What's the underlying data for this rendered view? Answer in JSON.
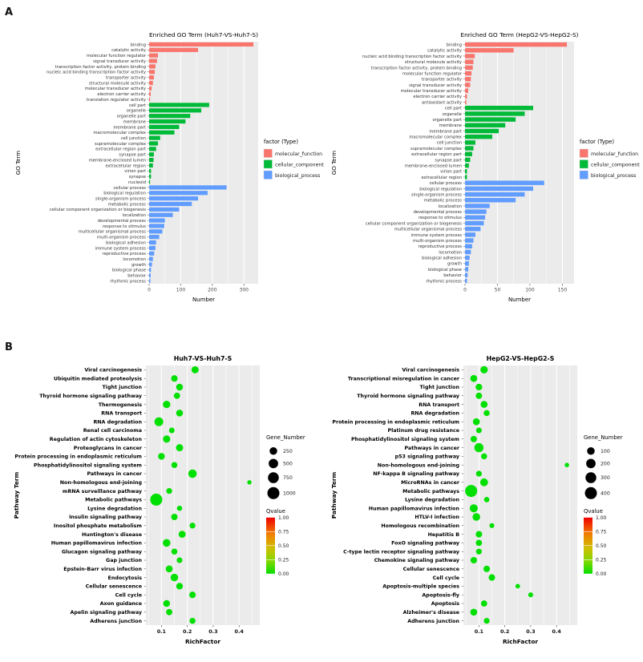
{
  "figure": {
    "panel_a_label": "A",
    "panel_b_label": "B"
  },
  "colors": {
    "molecular_function": "#F8766D",
    "cellular_component": "#00BA38",
    "biological_process": "#619CFF",
    "plot_background": "#EBEBEB",
    "qvalue_low": "#06DD00",
    "qvalue_high": "#F00000"
  },
  "chart_data": [
    {
      "id": "go-huh7",
      "type": "bar",
      "orientation": "horizontal",
      "title": "Enriched GO Term (Huh7-VS-Huh7-S)",
      "xlabel": "Number",
      "ylabel": "GO Term",
      "xticks": [
        0,
        100,
        200,
        300
      ],
      "xlim": [
        0,
        345
      ],
      "grid": true,
      "legend": {
        "title": "factor (Type)",
        "items": [
          {
            "label": "molecular_function",
            "color": "#F8766D"
          },
          {
            "label": "cellular_component",
            "color": "#00BA38"
          },
          {
            "label": "biological_process",
            "color": "#619CFF"
          }
        ]
      },
      "bars": {
        "columns": [
          "label",
          "group",
          "value"
        ],
        "rows": [
          [
            "binding",
            "molecular_function",
            330
          ],
          [
            "catalytic activity",
            "molecular_function",
            155
          ],
          [
            "molecular function regulator",
            "molecular_function",
            28
          ],
          [
            "signal transducer activity",
            "molecular_function",
            25
          ],
          [
            "transcription factor activity, protein binding",
            "molecular_function",
            20
          ],
          [
            "nucleic acid binding transcription factor activity",
            "molecular_function",
            18
          ],
          [
            "transporter activity",
            "molecular_function",
            15
          ],
          [
            "structural molecule activity",
            "molecular_function",
            12
          ],
          [
            "molecular transducer activity",
            "molecular_function",
            8
          ],
          [
            "electron carrier activity",
            "molecular_function",
            5
          ],
          [
            "translation regulator activity",
            "molecular_function",
            3
          ],
          [
            "cell part",
            "cellular_component",
            190
          ],
          [
            "organelle",
            "cellular_component",
            165
          ],
          [
            "organelle part",
            "cellular_component",
            130
          ],
          [
            "membrane",
            "cellular_component",
            115
          ],
          [
            "membrane part",
            "cellular_component",
            95
          ],
          [
            "macromolecular complex",
            "cellular_component",
            80
          ],
          [
            "cell junction",
            "cellular_component",
            35
          ],
          [
            "supramolecular complex",
            "cellular_component",
            28
          ],
          [
            "extracellular region part",
            "cellular_component",
            22
          ],
          [
            "synapse part",
            "cellular_component",
            15
          ],
          [
            "membrane-enclosed lumen",
            "cellular_component",
            14
          ],
          [
            "extracellular region",
            "cellular_component",
            12
          ],
          [
            "virion part",
            "cellular_component",
            6
          ],
          [
            "synapse",
            "cellular_component",
            6
          ],
          [
            "nucleoid",
            "cellular_component",
            3
          ],
          [
            "cellular process",
            "biological_process",
            245
          ],
          [
            "biological regulation",
            "biological_process",
            185
          ],
          [
            "single-organism process",
            "biological_process",
            155
          ],
          [
            "metabolic process",
            "biological_process",
            135
          ],
          [
            "cellular component organization or biogenesis",
            "biological_process",
            95
          ],
          [
            "localization",
            "biological_process",
            75
          ],
          [
            "developmental process",
            "biological_process",
            50
          ],
          [
            "response to stimulus",
            "biological_process",
            48
          ],
          [
            "multicellular organismal process",
            "biological_process",
            42
          ],
          [
            "multi-organism process",
            "biological_process",
            32
          ],
          [
            "biological adhesion",
            "biological_process",
            22
          ],
          [
            "immune system process",
            "biological_process",
            20
          ],
          [
            "reproductive process",
            "biological_process",
            16
          ],
          [
            "locomotion",
            "biological_process",
            12
          ],
          [
            "growth",
            "biological_process",
            9
          ],
          [
            "biological phase",
            "biological_process",
            6
          ],
          [
            "behavior",
            "biological_process",
            5
          ],
          [
            "rhythmic process",
            "biological_process",
            4
          ]
        ]
      }
    },
    {
      "id": "go-hepg2",
      "type": "bar",
      "orientation": "horizontal",
      "title": "Enriched GO Term (HepG2-VS-HepG2-S)",
      "xlabel": "Number",
      "ylabel": "GO Term",
      "xticks": [
        0,
        50,
        100,
        150
      ],
      "xlim": [
        0,
        168
      ],
      "grid": true,
      "legend": {
        "title": "factor (Type)",
        "items": [
          {
            "label": "molecular_function",
            "color": "#F8766D"
          },
          {
            "label": "cellular_component",
            "color": "#00BA38"
          },
          {
            "label": "biological_process",
            "color": "#619CFF"
          }
        ]
      },
      "bars": {
        "columns": [
          "label",
          "group",
          "value"
        ],
        "rows": [
          [
            "binding",
            "molecular_function",
            157
          ],
          [
            "catalytic activity",
            "molecular_function",
            75
          ],
          [
            "nucleic acid binding transcription factor activity",
            "molecular_function",
            15
          ],
          [
            "structural molecule activity",
            "molecular_function",
            13
          ],
          [
            "transcription factor activity, protein binding",
            "molecular_function",
            12
          ],
          [
            "molecular function regulator",
            "molecular_function",
            10
          ],
          [
            "transporter activity",
            "molecular_function",
            9
          ],
          [
            "signal transducer activity",
            "molecular_function",
            8
          ],
          [
            "molecular transducer activity",
            "molecular_function",
            5
          ],
          [
            "electron carrier activity",
            "molecular_function",
            3
          ],
          [
            "antioxidant activity",
            "molecular_function",
            2
          ],
          [
            "cell part",
            "cellular_component",
            105
          ],
          [
            "organelle",
            "cellular_component",
            92
          ],
          [
            "organelle part",
            "cellular_component",
            78
          ],
          [
            "membrane",
            "cellular_component",
            62
          ],
          [
            "membrane part",
            "cellular_component",
            52
          ],
          [
            "macromolecular complex",
            "cellular_component",
            42
          ],
          [
            "cell junction",
            "cellular_component",
            16
          ],
          [
            "supramolecular complex",
            "cellular_component",
            13
          ],
          [
            "extracellular region part",
            "cellular_component",
            11
          ],
          [
            "synapse part",
            "cellular_component",
            8
          ],
          [
            "membrane-enclosed lumen",
            "cellular_component",
            6
          ],
          [
            "virion part",
            "cellular_component",
            3
          ],
          [
            "extracellular region",
            "cellular_component",
            3
          ],
          [
            "cellular process",
            "biological_process",
            122
          ],
          [
            "biological regulation",
            "biological_process",
            105
          ],
          [
            "single-organism process",
            "biological_process",
            92
          ],
          [
            "metabolic process",
            "biological_process",
            78
          ],
          [
            "localization",
            "biological_process",
            38
          ],
          [
            "developmental process",
            "biological_process",
            33
          ],
          [
            "response to stimulus",
            "biological_process",
            31
          ],
          [
            "cellular component organization or biogenesis",
            "biological_process",
            29
          ],
          [
            "multicellular organismal process",
            "biological_process",
            24
          ],
          [
            "immune system process",
            "biological_process",
            16
          ],
          [
            "multi-organism process",
            "biological_process",
            13
          ],
          [
            "reproductive process",
            "biological_process",
            11
          ],
          [
            "locomotion",
            "biological_process",
            9
          ],
          [
            "biological adhesion",
            "biological_process",
            7
          ],
          [
            "growth",
            "biological_process",
            6
          ],
          [
            "biological phase",
            "biological_process",
            5
          ],
          [
            "behavior",
            "biological_process",
            4
          ],
          [
            "rhythmic process",
            "biological_process",
            3
          ]
        ]
      }
    },
    {
      "id": "kegg-huh7",
      "type": "scatter",
      "title": "Huh7-VS-Huh7-S",
      "xlabel": "RichFactor",
      "ylabel": "Pathway Term",
      "xticks": [
        0.1,
        0.2,
        0.3,
        0.4
      ],
      "xlim": [
        0.04,
        0.48
      ],
      "grid": true,
      "size_legend": {
        "title": "Gene_Number",
        "values": [
          250,
          500,
          750,
          1000
        ]
      },
      "color_legend": {
        "title": "Qvalue",
        "ticks": [
          "1.00",
          "0.75",
          "0.50",
          "0.25",
          "0.00"
        ]
      },
      "points": {
        "columns": [
          "label",
          "richfactor",
          "gene_number",
          "qvalue"
        ],
        "rows": [
          [
            "Viral carcinogenesis",
            0.23,
            200,
            0.0
          ],
          [
            "Ubiquitin mediated proteolysis",
            0.15,
            140,
            0.0
          ],
          [
            "Tight junction",
            0.17,
            170,
            0.0
          ],
          [
            "Thyroid hormone signaling pathway",
            0.16,
            120,
            0.0
          ],
          [
            "Thermogenesis",
            0.12,
            230,
            0.0
          ],
          [
            "RNA transport",
            0.17,
            170,
            0.0
          ],
          [
            "RNA degradation",
            0.09,
            400,
            0.0
          ],
          [
            "Renal cell carcinoma",
            0.14,
            70,
            0.0
          ],
          [
            "Regulation of actin cytoskeleton",
            0.12,
            210,
            0.0
          ],
          [
            "Proteoglycans in cancer",
            0.17,
            200,
            0.0
          ],
          [
            "Protein processing in endoplasmic reticulum",
            0.1,
            160,
            0.0
          ],
          [
            "Phosphatidylinositol signaling system",
            0.15,
            100,
            0.0
          ],
          [
            "Pathways in cancer",
            0.22,
            350,
            0.0
          ],
          [
            "Non-homologous end-joining",
            0.44,
            15,
            0.0
          ],
          [
            "mRNA surveillance pathway",
            0.13,
            90,
            0.0
          ],
          [
            "Metabolic pathways",
            0.08,
            1000,
            0.0
          ],
          [
            "Lysine degradation",
            0.17,
            50,
            0.0
          ],
          [
            "Insulin signaling pathway",
            0.15,
            130,
            0.0
          ],
          [
            "Inositol phosphate metabolism",
            0.22,
            90,
            0.0
          ],
          [
            "Huntington's disease",
            0.18,
            190,
            0.0
          ],
          [
            "Human papillomavirus infection",
            0.12,
            250,
            0.0
          ],
          [
            "Glucagon signaling pathway",
            0.15,
            100,
            0.0
          ],
          [
            "Gap junction",
            0.17,
            80,
            0.0
          ],
          [
            "Epstein-Barr virus infection",
            0.13,
            180,
            0.0
          ],
          [
            "Endocytosis",
            0.15,
            240,
            0.0
          ],
          [
            "Cellular senescence",
            0.17,
            150,
            0.0
          ],
          [
            "Cell cycle",
            0.22,
            140,
            0.0
          ],
          [
            "Axon guidance",
            0.12,
            160,
            0.0
          ],
          [
            "Apelin signaling pathway",
            0.13,
            120,
            0.0
          ],
          [
            "Adherens junction",
            0.22,
            100,
            0.0
          ]
        ]
      }
    },
    {
      "id": "kegg-hepg2",
      "type": "scatter",
      "title": "HepG2-VS-HepG2-S",
      "xlabel": "RichFactor",
      "ylabel": "Pathway Term",
      "xticks": [
        0.1,
        0.2,
        0.3,
        0.4
      ],
      "xlim": [
        0.04,
        0.48
      ],
      "grid": true,
      "size_legend": {
        "title": "Gene_Number",
        "values": [
          100,
          200,
          300,
          400
        ]
      },
      "color_legend": {
        "title": "Qvalue",
        "ticks": [
          "1.00",
          "0.75",
          "0.50",
          "0.25",
          "0.00"
        ]
      },
      "points": {
        "columns": [
          "label",
          "richfactor",
          "gene_number",
          "qvalue"
        ],
        "rows": [
          [
            "Viral carcinogenesis",
            0.12,
            90,
            0.0
          ],
          [
            "Transcriptional misregulation in cancer",
            0.08,
            70,
            0.0
          ],
          [
            "Tight junction",
            0.1,
            60,
            0.0
          ],
          [
            "Thyroid hormone signaling pathway",
            0.1,
            50,
            0.0
          ],
          [
            "RNA transport",
            0.12,
            70,
            0.0
          ],
          [
            "RNA degradation",
            0.13,
            40,
            0.0
          ],
          [
            "Protein processing in endoplasmic reticulum",
            0.09,
            70,
            0.0
          ],
          [
            "Platinum drug resistance",
            0.1,
            30,
            0.0
          ],
          [
            "Phosphatidylinositol signaling system",
            0.08,
            50,
            0.0
          ],
          [
            "Pathways in cancer",
            0.1,
            180,
            0.0
          ],
          [
            "p53 signaling pathway",
            0.12,
            40,
            0.0
          ],
          [
            "Non-homologous end-joining",
            0.44,
            8,
            0.0
          ],
          [
            "NF-kappa B signaling pathway",
            0.1,
            35,
            0.0
          ],
          [
            "MicroRNAs in cancer",
            0.12,
            110,
            0.0
          ],
          [
            "Metabolic pathways",
            0.07,
            400,
            0.0
          ],
          [
            "Lysine degradation",
            0.13,
            25,
            0.0
          ],
          [
            "Human papillomavirus infection",
            0.08,
            120,
            0.0
          ],
          [
            "HTLV-I infection",
            0.09,
            100,
            0.0
          ],
          [
            "Homologous recombination",
            0.15,
            15,
            0.0
          ],
          [
            "Hepatitis B",
            0.1,
            55,
            0.0
          ],
          [
            "FoxO signaling pathway",
            0.1,
            45,
            0.0
          ],
          [
            "C-type lectin receptor signaling pathway",
            0.1,
            35,
            0.0
          ],
          [
            "Chemokine signaling pathway",
            0.08,
            55,
            0.0
          ],
          [
            "Cellular senescence",
            0.13,
            55,
            0.0
          ],
          [
            "Cell cycle",
            0.15,
            55,
            0.0
          ],
          [
            "Apoptosis-multiple species",
            0.25,
            10,
            0.0
          ],
          [
            "Apoptosis-fly",
            0.3,
            15,
            0.0
          ],
          [
            "Apoptosis",
            0.12,
            45,
            0.0
          ],
          [
            "Alzheimer's disease",
            0.08,
            70,
            0.0
          ],
          [
            "Adherens junction",
            0.13,
            35,
            0.0
          ]
        ]
      }
    }
  ]
}
